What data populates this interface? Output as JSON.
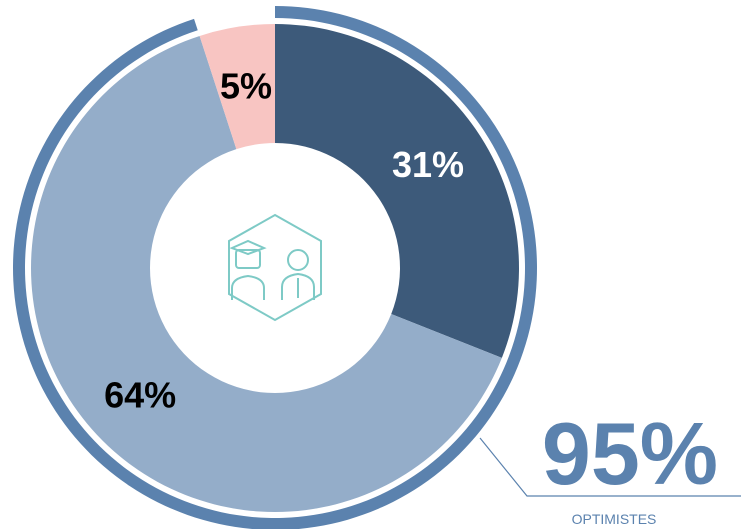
{
  "chart_data": {
    "type": "pie",
    "donut": true,
    "values": [
      31,
      64,
      5
    ],
    "value_labels": [
      "31%",
      "64%",
      "5%"
    ],
    "colors": [
      "#3d5a7a",
      "#94adc9",
      "#f8c5c2"
    ],
    "label_colors": [
      "#ffffff",
      "#000000",
      "#000000"
    ],
    "highlight": {
      "value": 95,
      "label": "95%",
      "caption": "OPTIMISTES",
      "color": "#5b82ae"
    }
  }
}
